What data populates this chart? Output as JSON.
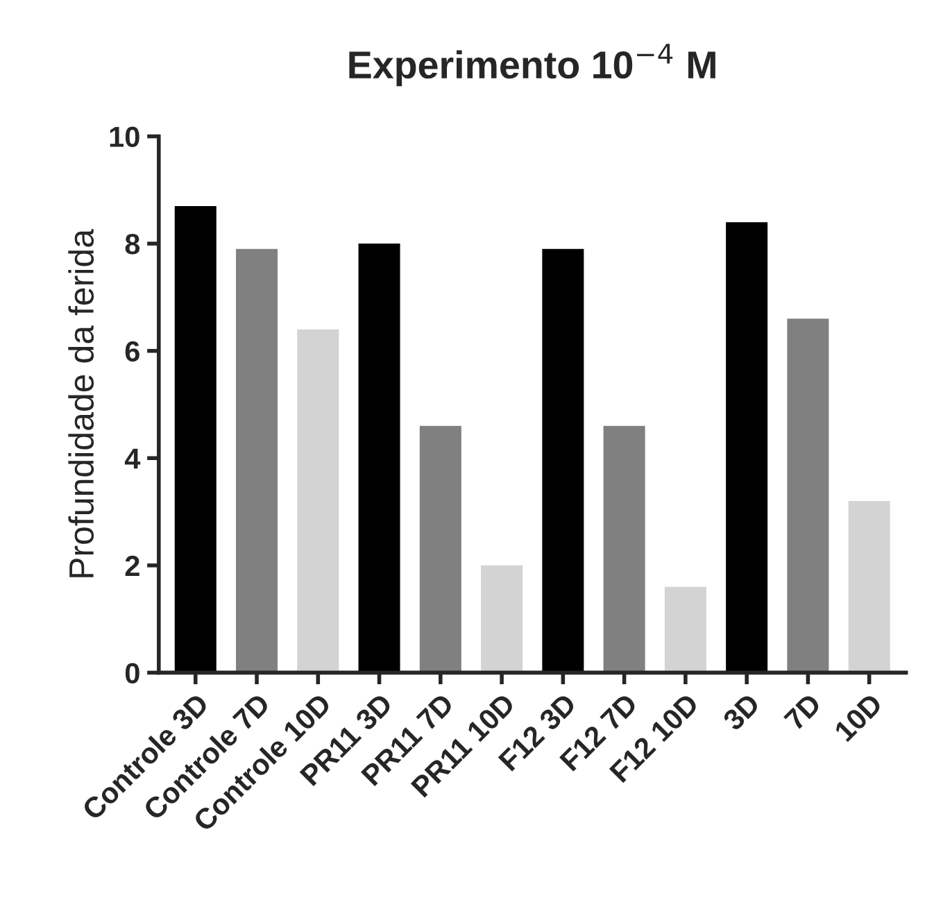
{
  "chart_data": {
    "type": "bar",
    "title": "Experimento 10$^{−4}$ M",
    "ylabel": "Profundidade da ferida",
    "categories": [
      "Controle 3D",
      "Controle 7D",
      "Controle 10D",
      "PR11 3D",
      "PR11 7D",
      "PR11 10D",
      "F12 3D",
      "F12 7D",
      "F12 10D",
      "3D",
      "7D",
      "10D"
    ],
    "values": [
      8.7,
      7.9,
      6.4,
      8.0,
      4.6,
      2.0,
      7.9,
      4.6,
      1.6,
      8.4,
      6.6,
      3.2
    ],
    "colors": [
      "#000000",
      "#808080",
      "#d3d3d3",
      "#000000",
      "#808080",
      "#d3d3d3",
      "#000000",
      "#808080",
      "#d3d3d3",
      "#000000",
      "#808080",
      "#d3d3d3"
    ],
    "ylim": [
      0,
      10
    ],
    "yticks": [
      0,
      2,
      4,
      6,
      8,
      10
    ],
    "grid": false,
    "legend": false
  }
}
